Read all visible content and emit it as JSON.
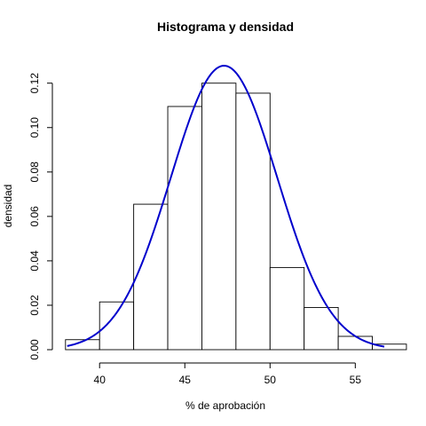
{
  "chart_data": {
    "type": "bar",
    "title": "Histograma y densidad",
    "xlabel": "% de aprobación",
    "ylabel": "densidad",
    "xlim": [
      38,
      57.5
    ],
    "ylim": [
      0,
      0.125
    ],
    "x_ticks": [
      40,
      45,
      50,
      55
    ],
    "y_ticks": [
      0.0,
      0.02,
      0.04,
      0.06,
      0.08,
      0.1,
      0.12
    ],
    "y_tick_labels": [
      "0.00",
      "0.02",
      "0.04",
      "0.06",
      "0.08",
      "0.10",
      "0.12"
    ],
    "grid": false,
    "bins": [
      {
        "x0": 38,
        "x1": 40,
        "density": 0.0045
      },
      {
        "x0": 40,
        "x1": 42,
        "density": 0.0215
      },
      {
        "x0": 42,
        "x1": 44,
        "density": 0.0655
      },
      {
        "x0": 44,
        "x1": 46,
        "density": 0.1095
      },
      {
        "x0": 46,
        "x1": 48,
        "density": 0.12
      },
      {
        "x0": 48,
        "x1": 50,
        "density": 0.1155
      },
      {
        "x0": 50,
        "x1": 52,
        "density": 0.037
      },
      {
        "x0": 52,
        "x1": 54,
        "density": 0.019
      },
      {
        "x0": 54,
        "x1": 56,
        "density": 0.006
      },
      {
        "x0": 56,
        "x1": 58,
        "density": 0.0025
      }
    ],
    "density_curve": {
      "type": "normal",
      "mean": 47.3,
      "sd": 3.12,
      "x_range": [
        38.1,
        56.7
      ],
      "color": "#0000cc"
    },
    "bar_fill": "#ffffff",
    "bar_stroke": "#000000"
  }
}
